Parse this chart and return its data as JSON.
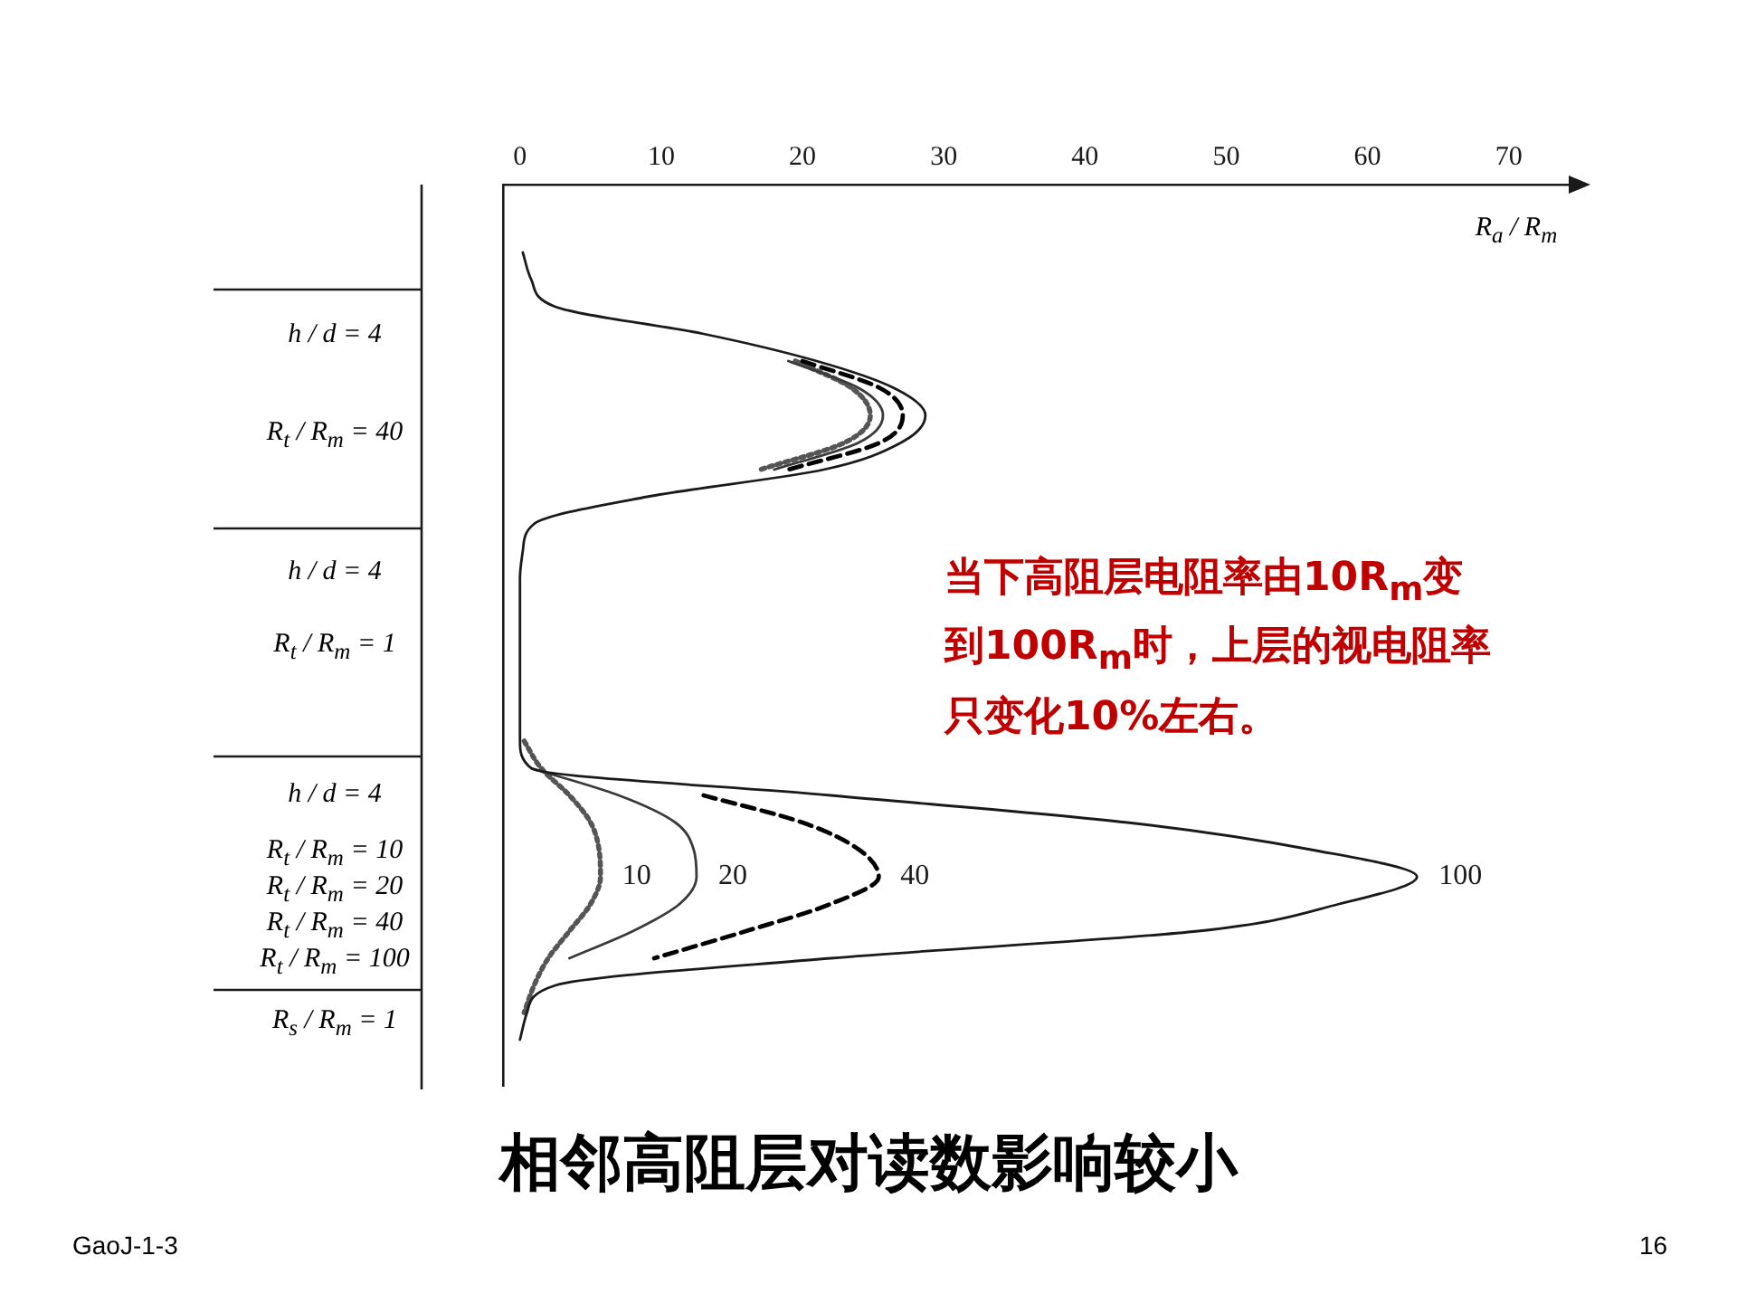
{
  "chart_data": {
    "type": "line",
    "orientation": "horizontal",
    "title": "相邻高阻层对读数影响较小",
    "xlabel": "R$_{a}$ / R$_{m}$",
    "annotations": [
      "h / d = 4",
      "R$_{t}$ / R$_{m}$ = 40",
      "h / d = 4",
      "R$_{t}$ / R$_{m}$ = 1",
      "h / d = 4",
      "R$_{t}$ / R$_{m}$ = 10",
      "R$_{t}$ / R$_{m}$ = 20",
      "R$_{t}$ / R$_{m}$ = 40",
      "R$_{t}$ / R$_{m}$ = 100",
      "R$_{s}$ / R$_{m}$ = 1",
      "当下高阻层电阻率由10R$_{m}$变到100R$_{m}$时，上层的视电阻率只变化10%左右。",
      "GaoJ-1-3",
      "16"
    ],
    "categories": [
      null,
      null,
      null,
      null,
      null,
      null,
      null,
      null,
      null,
      null,
      null,
      null,
      null,
      null,
      null,
      null,
      null,
      null,
      null,
      null,
      null,
      null,
      null,
      null,
      null,
      null,
      null,
      null,
      null,
      null
    ],
    "series": [
      {
        "name": "100",
        "color": "#1a1a1a",
        "line_style": "solid",
        "values": [
          0.2,
          0.8,
          2.5,
          13,
          21,
          26.5,
          28.7,
          27,
          21.5,
          9,
          1,
          0.2,
          0,
          0,
          0,
          0,
          0,
          0,
          0,
          0.8,
          22,
          43,
          56,
          63.5,
          58,
          48,
          22,
          2.5,
          0.5,
          0
        ]
      },
      {
        "name": "20",
        "color": "#3a3a3a",
        "line_style": "solid",
        "values": [
          null,
          null,
          null,
          null,
          19,
          24,
          25.7,
          24,
          18,
          null,
          null,
          null,
          null,
          null,
          null,
          null,
          null,
          null,
          null,
          0.8,
          7,
          11,
          12.3,
          12.5,
          11.3,
          8,
          3.5,
          null,
          null,
          null
        ]
      },
      {
        "name": "40",
        "color": "#000000",
        "line_style": "dashed",
        "values": [
          null,
          null,
          null,
          null,
          20,
          25.5,
          27.1,
          25.5,
          19,
          null,
          null,
          null,
          null,
          null,
          null,
          null,
          null,
          null,
          null,
          null,
          13,
          20,
          24,
          25.4,
          22,
          16,
          9.5,
          null,
          null,
          null
        ]
      },
      {
        "name": "10",
        "color": "#555555",
        "line_style": "dotted",
        "values": [
          null,
          null,
          null,
          null,
          19.5,
          23.5,
          24.8,
          23,
          17,
          null,
          null,
          null,
          null,
          null,
          null,
          null,
          null,
          null,
          0.3,
          1.5,
          3.5,
          5,
          5.6,
          5.7,
          5,
          3.5,
          2,
          1,
          0.3,
          null
        ]
      }
    ],
    "xlim": [
      -1.2,
      74.5
    ],
    "xticks": [
      0,
      10,
      20,
      30,
      40,
      50,
      60,
      70
    ],
    "grid": false,
    "legend": false,
    "marker": "none",
    "tick_labels": "x"
  }
}
